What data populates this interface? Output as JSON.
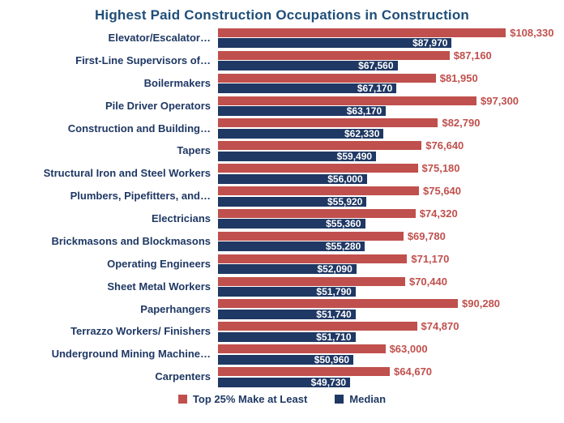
{
  "title": "Highest Paid Construction Occupations in Construction",
  "colors": {
    "top25_bar": "#C0504D",
    "median_bar": "#1F3864",
    "title_text": "#1F4E79",
    "category_text": "#1F3864",
    "value_inside_text": "#FFFFFF"
  },
  "legend": [
    {
      "label": "Top 25% Make at Least",
      "color": "#C0504D"
    },
    {
      "label": "Median",
      "color": "#1F3864"
    }
  ],
  "chart_data": {
    "type": "bar",
    "orientation": "horizontal",
    "title": "Highest Paid Construction Occupations in Construction",
    "xlabel": "",
    "ylabel": "",
    "xlim": [
      0,
      129000
    ],
    "grid": false,
    "axes_hidden": true,
    "value_labels": true,
    "legend_position": "bottom",
    "currency_format": "$#,##0",
    "categories": [
      "Elevator/Escalator…",
      "First-Line Supervisors of…",
      "Boilermakers",
      "Pile Driver Operators",
      "Construction and Building…",
      "Tapers",
      "Structural Iron and Steel Workers",
      "Plumbers, Pipefitters, and…",
      "Electricians",
      "Brickmasons and Blockmasons",
      "Operating Engineers",
      "Sheet Metal Workers",
      "Paperhangers",
      "Terrazzo Workers/ Finishers",
      "Underground Mining Machine…",
      "Carpenters"
    ],
    "series": [
      {
        "name": "Top 25% Make at Least",
        "color": "#C0504D",
        "values": [
          108330,
          87160,
          81950,
          97300,
          82790,
          76640,
          75180,
          75640,
          74320,
          69780,
          71170,
          70440,
          90280,
          74870,
          63000,
          64670
        ]
      },
      {
        "name": "Median",
        "color": "#1F3864",
        "values": [
          87970,
          67560,
          67170,
          63170,
          62330,
          59490,
          56000,
          55920,
          55360,
          55280,
          52090,
          51790,
          51740,
          51710,
          50960,
          49730
        ]
      }
    ]
  }
}
